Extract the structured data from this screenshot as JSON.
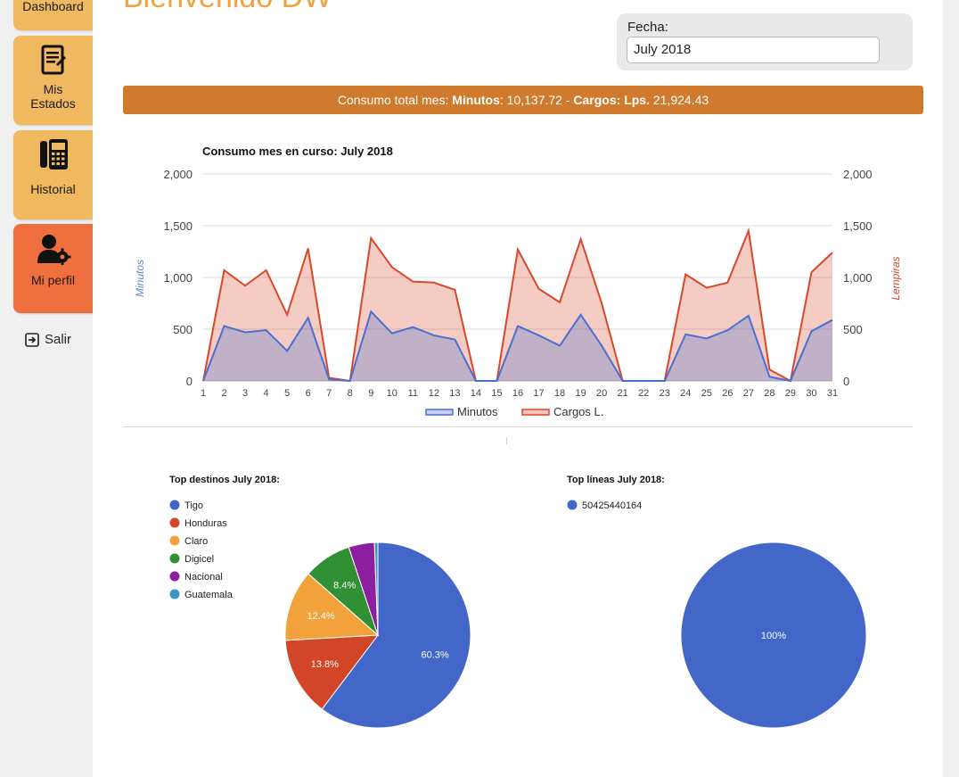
{
  "sidebar": {
    "dashboard_label": "Dashboard",
    "estados_label_1": "Mis",
    "estados_label_2": "Estados",
    "historial_label": "Historial",
    "perfil_label": "Mi perfil",
    "salir_label": "Salir",
    "button_color": "#f1b95f",
    "active_color": "#ef6f3e"
  },
  "header": {
    "welcome_text": "Bienvenido DW"
  },
  "fecha": {
    "label": "Fecha:",
    "value": "July 2018"
  },
  "banner": {
    "prefix": "Consumo total mes: ",
    "minutos_label": "Minutos",
    "minutos_value": ": 10,137.72 - ",
    "cargos_label": "Cargos: Lps.",
    "cargos_value": " 21,924.43",
    "color": "#d07a2e"
  },
  "chart_data": [
    {
      "type": "area",
      "title": "Consumo mes en curso: July 2018",
      "ylabel_left": "Minutos",
      "ylabel_right": "Lempiras",
      "x": [
        1,
        2,
        3,
        4,
        5,
        6,
        7,
        8,
        9,
        10,
        11,
        12,
        13,
        14,
        15,
        16,
        17,
        18,
        19,
        20,
        21,
        22,
        23,
        24,
        25,
        26,
        27,
        28,
        29,
        30,
        31
      ],
      "ylim": [
        0,
        2000
      ],
      "yticks": [
        "0",
        "500",
        "1,000",
        "1,500",
        "2,000"
      ],
      "grid": true,
      "legend": "bottom",
      "series": [
        {
          "name": "Minutos",
          "color": "#4a6fd1",
          "values": [
            0,
            530,
            470,
            490,
            290,
            610,
            15,
            0,
            670,
            460,
            520,
            440,
            400,
            0,
            0,
            530,
            440,
            340,
            640,
            340,
            0,
            0,
            0,
            450,
            410,
            490,
            630,
            40,
            0,
            480,
            590
          ]
        },
        {
          "name": "Cargos L.",
          "color": "#d9472b",
          "values": [
            0,
            1070,
            920,
            1070,
            640,
            1280,
            30,
            0,
            1380,
            1100,
            960,
            950,
            880,
            0,
            0,
            1270,
            890,
            760,
            1370,
            750,
            0,
            0,
            0,
            1030,
            900,
            950,
            1450,
            110,
            0,
            1050,
            1240
          ]
        }
      ]
    },
    {
      "type": "pie",
      "title": "Top destinos July 2018:",
      "categories": [
        "Tigo",
        "Honduras",
        "Claro",
        "Digicel",
        "Nacional",
        "Guatemala"
      ],
      "values": [
        60.3,
        13.8,
        12.4,
        8.4,
        4.5,
        0.6
      ],
      "labels": [
        "60.3%",
        "13.8%",
        "12.4%",
        "8.4%",
        "",
        ""
      ],
      "colors": [
        "#4267c9",
        "#d24526",
        "#f2a23a",
        "#2f9134",
        "#8e1fa0",
        "#3a96c4"
      ],
      "legend": "left"
    },
    {
      "type": "pie",
      "title": "Top líneas July 2018:",
      "categories": [
        "50425440164"
      ],
      "values": [
        100
      ],
      "labels": [
        "100%"
      ],
      "colors": [
        "#4267c9"
      ],
      "legend": "left"
    }
  ]
}
